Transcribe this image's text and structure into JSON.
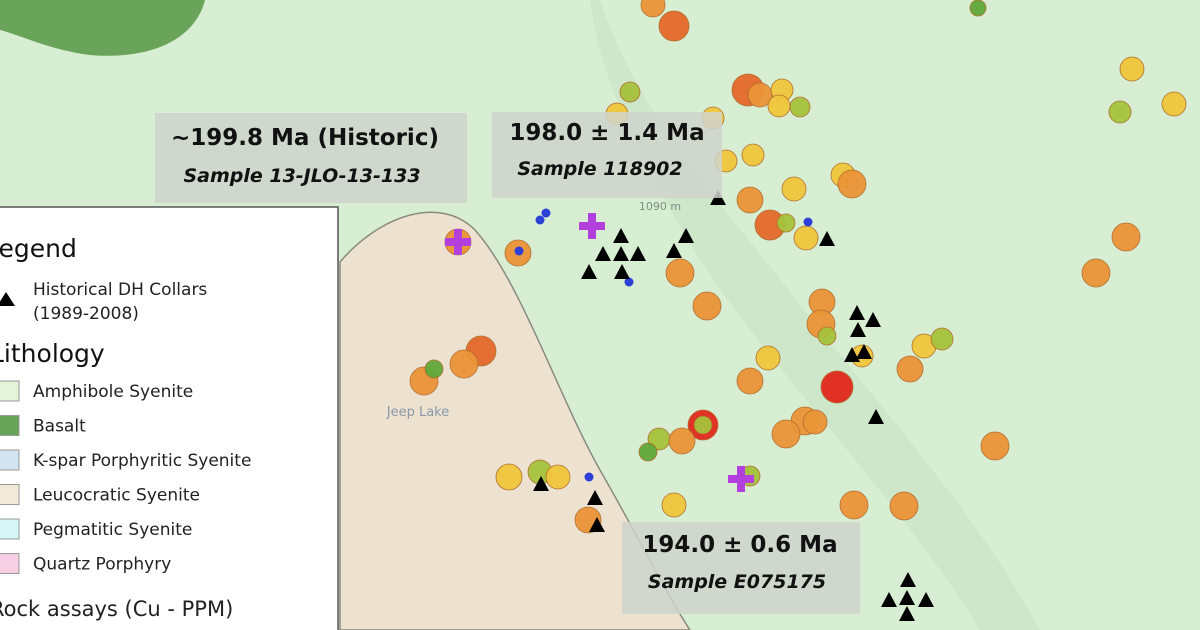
{
  "annotations": [
    {
      "title": "~199.8 Ma (Historic)",
      "sample": "Sample 13-JLO-13-133"
    },
    {
      "title": "198.0 ± 1.4 Ma",
      "sample": "Sample 118902"
    },
    {
      "title": "194.0 ± 0.6 Ma",
      "sample": "Sample E075175"
    }
  ],
  "legend": {
    "title": "Legend",
    "collars": {
      "label": "Historical DH Collars",
      "years": "(1989-2008)"
    },
    "lithology_title": "Lithology",
    "lithology": [
      "Amphibole Syenite",
      "Basalt",
      "K-spar Porphyritic Syenite",
      "Leucocratic Syenite",
      "Pegmatitic Syenite",
      "Quartz Porphyry"
    ],
    "assays_title": "Rock assays (Cu - PPM)"
  },
  "map_labels": {
    "lake": "Jeep Lake",
    "elevation": "1090 m"
  }
}
